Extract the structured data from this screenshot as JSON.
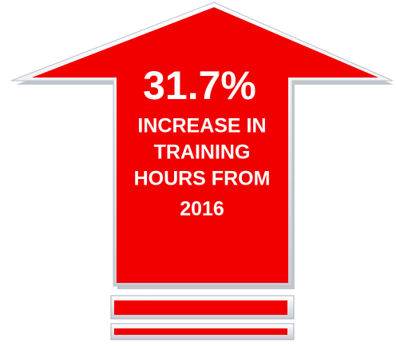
{
  "headline": "31.7%",
  "lines": [
    "INCREASE IN",
    "TRAINING",
    "HOURS FROM",
    "2016"
  ]
}
